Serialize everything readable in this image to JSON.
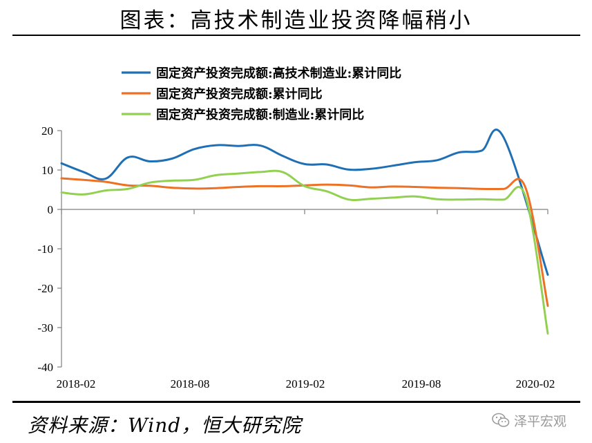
{
  "chart_data": {
    "type": "line",
    "title": "图表：高技术制造业投资降幅稍小",
    "source": "资料来源：Wind，恒大研究院",
    "x_tick_labels": [
      "2018-02",
      "2018-08",
      "2019-02",
      "2019-08",
      "2020-02"
    ],
    "ylim": [
      -40,
      20
    ],
    "y_ticks": [
      20,
      10,
      0,
      -10,
      -20,
      -30,
      -40
    ],
    "legend_position": "top",
    "grid": false,
    "months": [
      "2018-02",
      "2018-03",
      "2018-04",
      "2018-05",
      "2018-06",
      "2018-07",
      "2018-08",
      "2018-09",
      "2018-10",
      "2018-11",
      "2018-12",
      "2019-02",
      "2019-03",
      "2019-04",
      "2019-05",
      "2019-06",
      "2019-07",
      "2019-08",
      "2019-09",
      "2019-10",
      "2019-11",
      "2019-12",
      "2020-02"
    ],
    "series": [
      {
        "name": "固定资产投资完成额:高技术制造业:累计同比",
        "color": "#1f6fb5",
        "values": [
          11.7,
          9.5,
          7.8,
          13.2,
          12.2,
          12.9,
          15.3,
          16.3,
          16.1,
          16.2,
          13.6,
          11.5,
          11.4,
          10.1,
          10.3,
          11.1,
          12.0,
          12.5,
          14.5,
          14.9,
          18.3,
          null,
          -16.6
        ]
      },
      {
        "name": "固定资产投资完成额:累计同比",
        "color": "#ed7125",
        "values": [
          7.9,
          7.5,
          7.0,
          6.1,
          6.0,
          5.5,
          5.3,
          5.4,
          5.7,
          5.9,
          5.9,
          6.1,
          6.3,
          6.1,
          5.6,
          5.8,
          5.7,
          5.5,
          5.4,
          5.2,
          5.2,
          5.4,
          -24.5
        ]
      },
      {
        "name": "固定资产投资完成额:制造业:累计同比",
        "color": "#92d050",
        "values": [
          4.3,
          3.8,
          4.8,
          5.2,
          6.8,
          7.3,
          7.5,
          8.7,
          9.1,
          9.5,
          9.5,
          5.9,
          4.6,
          2.5,
          2.7,
          3.0,
          3.3,
          2.6,
          2.5,
          2.6,
          2.5,
          3.1,
          -31.5
        ]
      }
    ]
  },
  "watermark": {
    "label": "泽平宏观",
    "icon": "wechat-icon"
  }
}
